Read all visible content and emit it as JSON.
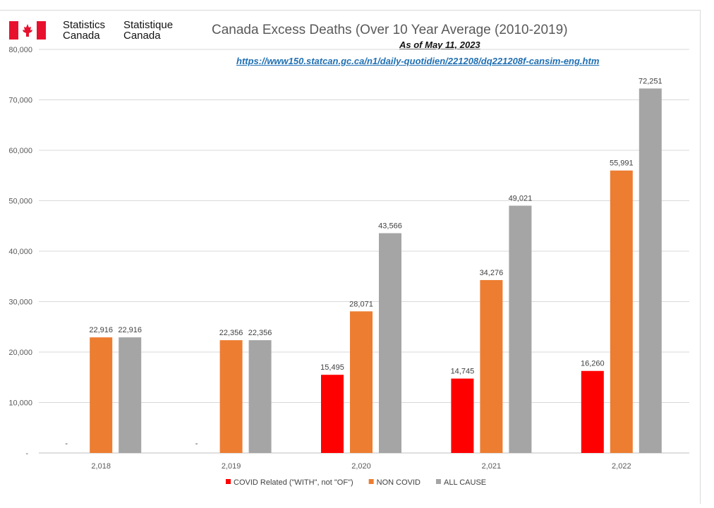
{
  "header": {
    "logo_en": "Statistics Canada",
    "logo_fr": "Statistique Canada",
    "flag_icon": "canada-flag-icon"
  },
  "chart_data": {
    "type": "bar",
    "title": "Canada Excess Deaths (Over 10 Year Average (2010-2019)",
    "subtitle": "As of May 11, 2023",
    "source_url": "https://www150.statcan.gc.ca/n1/daily-quotidien/221208/dq221208f-cansim-eng.htm",
    "categories": [
      "2,018",
      "2,019",
      "2,020",
      "2,021",
      "2,022"
    ],
    "series": [
      {
        "name": "COVID Related (\"WITH\", not \"OF\")",
        "color": "#ff0000",
        "values": [
          0,
          0,
          15495,
          14745,
          16260
        ],
        "labels": [
          "-",
          "-",
          "15,495",
          "14,745",
          "16,260"
        ]
      },
      {
        "name": "NON COVID",
        "color": "#ed7d31",
        "values": [
          22916,
          22356,
          28071,
          34276,
          55991
        ],
        "labels": [
          "22,916",
          "22,356",
          "28,071",
          "34,276",
          "55,991"
        ]
      },
      {
        "name": "ALL CAUSE",
        "color": "#a5a5a5",
        "values": [
          22916,
          22356,
          43566,
          49021,
          72251
        ],
        "labels": [
          "22,916",
          "22,356",
          "43,566",
          "49,021",
          "72,251"
        ]
      }
    ],
    "ylim": [
      0,
      80000
    ],
    "yticks": [
      0,
      10000,
      20000,
      30000,
      40000,
      50000,
      60000,
      70000,
      80000
    ],
    "ytick_labels": [
      "-",
      "10,000",
      "20,000",
      "30,000",
      "40,000",
      "50,000",
      "60,000",
      "70,000",
      "80,000"
    ],
    "grid": true,
    "legend_position": "bottom"
  }
}
